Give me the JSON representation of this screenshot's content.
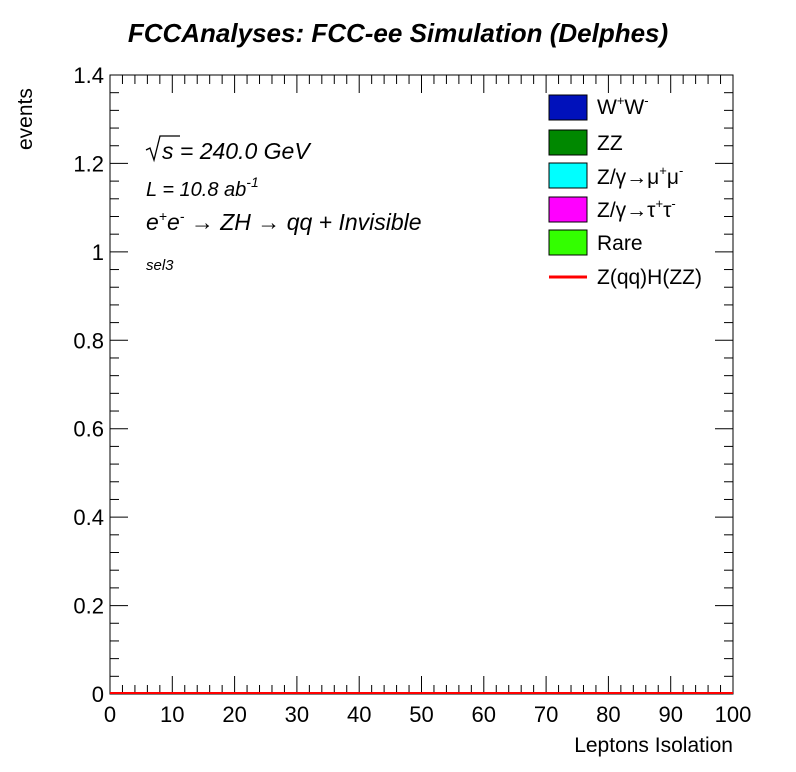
{
  "page": {
    "title": "FCCAnalyses: FCC-ee Simulation (Delphes)"
  },
  "chart_data": {
    "type": "bar",
    "title": "FCCAnalyses: FCC-ee Simulation (Delphes)",
    "xlabel": "Leptons Isolation",
    "ylabel": "events",
    "xlim": [
      0,
      100
    ],
    "ylim": [
      0,
      1.4
    ],
    "x_ticks": [
      "0",
      "10",
      "20",
      "30",
      "40",
      "50",
      "60",
      "70",
      "80",
      "90",
      "100"
    ],
    "y_ticks": [
      "0",
      "0.2",
      "0.4",
      "0.6",
      "0.8",
      "1",
      "1.2",
      "1.4"
    ],
    "x_tick_values": [
      0,
      10,
      20,
      30,
      40,
      50,
      60,
      70,
      80,
      90,
      100
    ],
    "y_tick_values": [
      0,
      0.2,
      0.4,
      0.6,
      0.8,
      1.0,
      1.2,
      1.4
    ],
    "grid": false,
    "legend_position": "top-right",
    "annotations": {
      "sqrt_s": "240.0 GeV",
      "luminosity_value": "L = 10.8 ab",
      "luminosity_exponent": "-1",
      "process": "qq + Invisible",
      "selection": "sel3"
    },
    "series": [
      {
        "name": "W+W-",
        "color": "#0011bb",
        "style": "fill",
        "values": [
          0
        ]
      },
      {
        "name": "ZZ",
        "color": "#008800",
        "style": "fill",
        "values": [
          0
        ]
      },
      {
        "name": "Z/γ→μ+μ-",
        "color": "#00ffff",
        "style": "fill",
        "values": [
          0
        ]
      },
      {
        "name": "Z/γ→τ+τ-",
        "color": "#ff00ff",
        "style": "fill",
        "values": [
          0
        ]
      },
      {
        "name": "Rare",
        "color": "#33ff00",
        "style": "fill",
        "values": [
          0
        ]
      },
      {
        "name": "Z(qq)H(ZZ)",
        "color": "#ff0000",
        "style": "line",
        "values": [
          0
        ]
      }
    ]
  }
}
